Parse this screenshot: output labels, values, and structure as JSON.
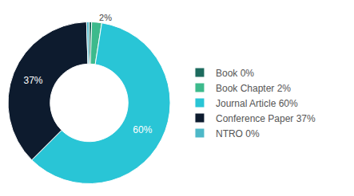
{
  "chart_data": {
    "type": "pie",
    "categories": [
      "Book 0%",
      "Book Chapter 2%",
      "Journal Article 60%",
      "Conference Paper 37%",
      "NTRO 0%"
    ],
    "values": [
      0.5,
      2,
      60,
      37,
      0.5
    ],
    "value_labels": [
      null,
      "2%",
      "60%",
      "37%",
      null
    ],
    "colors": [
      "#1d6b5e",
      "#3dba8c",
      "#29c5d6",
      "#0d1b2e",
      "#4db8c8"
    ],
    "data_labels": true,
    "legend": "right"
  }
}
